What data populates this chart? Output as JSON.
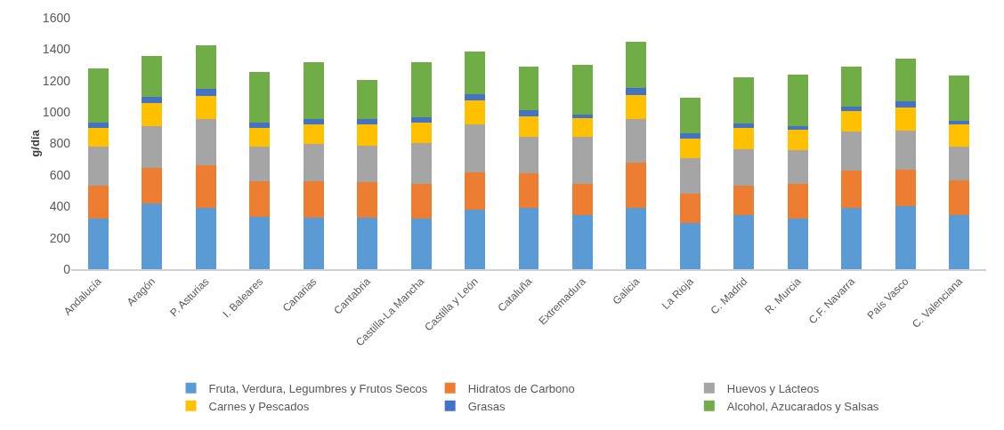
{
  "chart_data": {
    "type": "bar",
    "stacked": true,
    "ylabel": "g/día",
    "ylim": [
      0,
      1600
    ],
    "yticks": [
      0,
      200,
      400,
      600,
      800,
      1000,
      1200,
      1400,
      1600
    ],
    "grid": false,
    "legend": "bottom",
    "categories": [
      "Andalucía",
      "Aragón",
      "P. Asturias",
      "I. Baleares",
      "Canarias",
      "Cantabria",
      "Castilla-La Mancha",
      "Castilla y León",
      "Cataluña",
      "Extremadura",
      "Galicia",
      "La Rioja",
      "C. Madrid",
      "R. Murcia",
      "C.F. Navarra",
      "País Vasco",
      "C. Valenciana"
    ],
    "series": [
      {
        "name": "Fruta, Verdura, Legumbres y Frutos Secos",
        "color": "#5b9bd5",
        "values": [
          320,
          420,
          390,
          335,
          330,
          330,
          320,
          380,
          390,
          345,
          390,
          295,
          345,
          325,
          390,
          400,
          345
        ]
      },
      {
        "name": "Hidratos de Carbono",
        "color": "#ed7d31",
        "values": [
          210,
          225,
          270,
          225,
          230,
          225,
          220,
          235,
          220,
          200,
          290,
          185,
          185,
          215,
          235,
          235,
          220
        ]
      },
      {
        "name": "Huevos y Lácteos",
        "color": "#a5a5a5",
        "values": [
          250,
          265,
          295,
          220,
          240,
          230,
          265,
          305,
          230,
          295,
          275,
          225,
          235,
          220,
          250,
          245,
          215
        ]
      },
      {
        "name": "Carnes y Pescados",
        "color": "#ffc000",
        "values": [
          120,
          150,
          150,
          120,
          120,
          135,
          130,
          155,
          135,
          120,
          155,
          125,
          135,
          125,
          130,
          150,
          140
        ]
      },
      {
        "name": "Grasas",
        "color": "#4472c4",
        "values": [
          35,
          35,
          40,
          35,
          35,
          35,
          30,
          40,
          35,
          25,
          45,
          35,
          30,
          25,
          30,
          40,
          25
        ]
      },
      {
        "name": "Alcohol, Azucarados y Salsas",
        "color": "#70ad47",
        "values": [
          345,
          260,
          280,
          320,
          365,
          250,
          350,
          270,
          280,
          315,
          290,
          225,
          290,
          330,
          255,
          270,
          290
        ]
      }
    ]
  }
}
